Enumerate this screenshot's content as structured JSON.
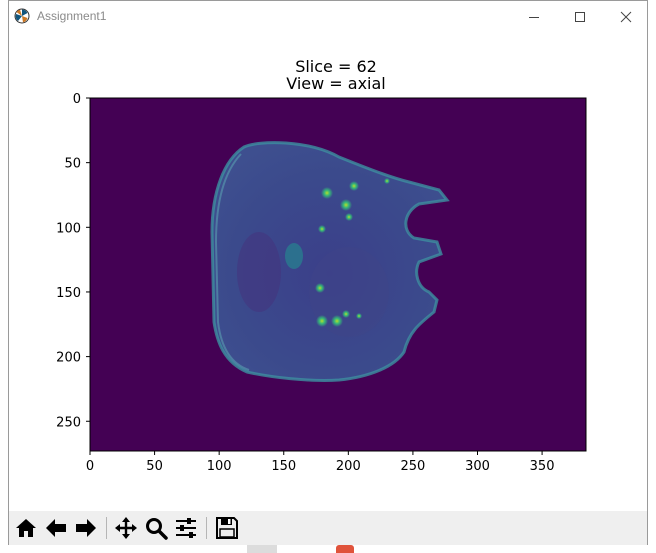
{
  "window": {
    "title": "Assignment1"
  },
  "figure": {
    "title_line1": "Slice = 62",
    "title_line2": "View = axial",
    "colormap": "viridis",
    "background_color": "#440154"
  },
  "chart_data": {
    "type": "heatmap",
    "title": "Slice = 62\nView = axial",
    "xlim": [
      0,
      384
    ],
    "ylim": [
      273,
      0
    ],
    "x_ticks": [
      "0",
      "50",
      "100",
      "150",
      "200",
      "250",
      "300",
      "350"
    ],
    "y_ticks": [
      "0",
      "50",
      "100",
      "150",
      "200",
      "250"
    ],
    "x_tick_values": [
      0,
      50,
      100,
      150,
      200,
      250,
      300,
      350
    ],
    "y_tick_values": [
      0,
      50,
      100,
      150,
      200,
      250
    ]
  },
  "toolbar": {
    "buttons": [
      {
        "name": "home",
        "icon": "home-icon"
      },
      {
        "name": "back",
        "icon": "arrow-left-icon"
      },
      {
        "name": "forward",
        "icon": "arrow-right-icon"
      },
      {
        "name": "pan",
        "icon": "move-icon"
      },
      {
        "name": "zoom",
        "icon": "zoom-icon"
      },
      {
        "name": "configure",
        "icon": "sliders-icon"
      },
      {
        "name": "save",
        "icon": "save-icon"
      }
    ]
  }
}
